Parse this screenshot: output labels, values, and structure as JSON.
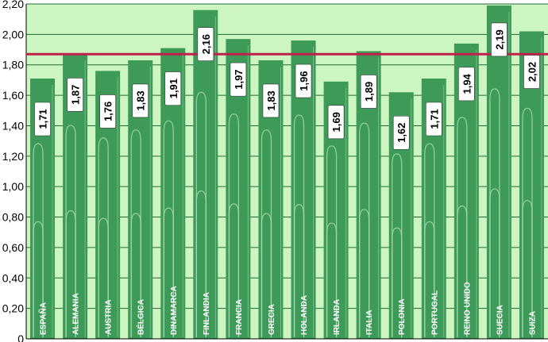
{
  "chart_data": {
    "type": "bar",
    "categories": [
      "ESPAÑA",
      "ALEMANIA",
      "AUSTRIA",
      "BÉLGICA",
      "DINAMARCA",
      "FINLANDIA",
      "FRANCIA",
      "GRECIA",
      "HOLANDA",
      "IRLANDA",
      "ITALIA",
      "POLONIA",
      "PORTUGAL",
      "REINO UNIDO",
      "SUECIA",
      "SUIZA"
    ],
    "values": [
      1.71,
      1.87,
      1.76,
      1.83,
      1.91,
      2.16,
      1.97,
      1.83,
      1.96,
      1.69,
      1.89,
      1.62,
      1.71,
      1.94,
      2.19,
      2.02
    ],
    "value_labels": [
      "1,71",
      "1,87",
      "1,76",
      "1,83",
      "1,91",
      "2,16",
      "1,97",
      "1,83",
      "1,96",
      "1,69",
      "1,89",
      "1,62",
      "1,71",
      "1,94",
      "2,19",
      "2,02"
    ],
    "yticks": [
      0,
      0.2,
      0.4,
      0.6,
      0.8,
      1.0,
      1.2,
      1.4,
      1.6,
      1.8,
      2.0,
      2.2
    ],
    "ytick_labels": [
      "0",
      "0,20",
      "0,40",
      "0,60",
      "0,80",
      "1,00",
      "1,20",
      "1,40",
      "1,60",
      "1,80",
      "2,00",
      "2,20"
    ],
    "ylim": [
      0,
      2.2
    ],
    "reference_line": 1.87,
    "grid": true,
    "colors": {
      "plot_background": "#ccf5c2",
      "bar": "#3d9a58",
      "bar_stripe": "#a8d9ae",
      "reference_line": "#c0204a",
      "grid": "#1f6b35",
      "label_box": "#ffffff"
    }
  }
}
